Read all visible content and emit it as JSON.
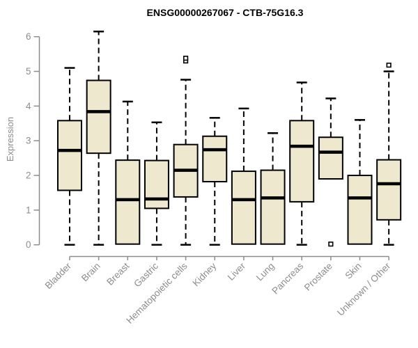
{
  "title": "ENSG00000267067 - CTB-75G16.3",
  "colors": {
    "box_fill": "#EDE8CE",
    "box_border": "#000000",
    "median": "#000000",
    "whisker": "#000000",
    "axis": "#8c8c8c",
    "tick_label": "#8c8c8c",
    "title": "#000000",
    "background": "#ffffff",
    "outlier_fill": "#ffffff"
  },
  "chart_data": {
    "type": "boxplot",
    "title": "ENSG00000267067 - CTB-75G16.3",
    "xlabel": "",
    "ylabel": "Expression",
    "ylim": [
      0,
      6
    ],
    "yticks": [
      0,
      1,
      2,
      3,
      4,
      5,
      6
    ],
    "grid": false,
    "legend": "none",
    "categories": [
      "Bladder",
      "Brain",
      "Breast",
      "Gastric",
      "Hematopoietic cells",
      "Kidney",
      "Liver",
      "Lung",
      "Pancreas",
      "Prostate",
      "Skin",
      "Unknown / Other"
    ],
    "series": [
      {
        "name": "Bladder",
        "whisker_low": 0,
        "q1": 1.57,
        "median": 2.72,
        "q3": 3.58,
        "whisker_high": 5.1,
        "outliers": []
      },
      {
        "name": "Brain",
        "whisker_low": 0,
        "q1": 2.64,
        "median": 3.84,
        "q3": 4.74,
        "whisker_high": 6.15,
        "outliers": []
      },
      {
        "name": "Breast",
        "whisker_low": 0.02,
        "q1": 0.02,
        "median": 1.3,
        "q3": 2.44,
        "whisker_high": 4.13,
        "outliers": []
      },
      {
        "name": "Gastric",
        "whisker_low": 0,
        "q1": 1.05,
        "median": 1.32,
        "q3": 2.43,
        "whisker_high": 3.53,
        "outliers": []
      },
      {
        "name": "Hematopoietic cells",
        "whisker_low": 0,
        "q1": 1.38,
        "median": 2.15,
        "q3": 2.89,
        "whisker_high": 4.76,
        "outliers": [
          5.3,
          5.38
        ]
      },
      {
        "name": "Kidney",
        "whisker_low": 0,
        "q1": 1.82,
        "median": 2.74,
        "q3": 3.13,
        "whisker_high": 3.66,
        "outliers": []
      },
      {
        "name": "Liver",
        "whisker_low": 0.02,
        "q1": 0.02,
        "median": 1.3,
        "q3": 2.12,
        "whisker_high": 3.93,
        "outliers": []
      },
      {
        "name": "Lung",
        "whisker_low": 0.02,
        "q1": 0.02,
        "median": 1.35,
        "q3": 2.15,
        "whisker_high": 3.22,
        "outliers": []
      },
      {
        "name": "Pancreas",
        "whisker_low": 0,
        "q1": 1.24,
        "median": 2.84,
        "q3": 3.58,
        "whisker_high": 4.68,
        "outliers": []
      },
      {
        "name": "Prostate",
        "whisker_low": 1.9,
        "q1": 1.9,
        "median": 2.67,
        "q3": 3.1,
        "whisker_high": 4.22,
        "outliers": [
          0.02
        ]
      },
      {
        "name": "Skin",
        "whisker_low": 0.02,
        "q1": 0.02,
        "median": 1.35,
        "q3": 2.0,
        "whisker_high": 3.6,
        "outliers": []
      },
      {
        "name": "Unknown / Other",
        "whisker_low": 0,
        "q1": 0.72,
        "median": 1.76,
        "q3": 2.45,
        "whisker_high": 5.0,
        "outliers": [
          5.18
        ]
      }
    ]
  }
}
